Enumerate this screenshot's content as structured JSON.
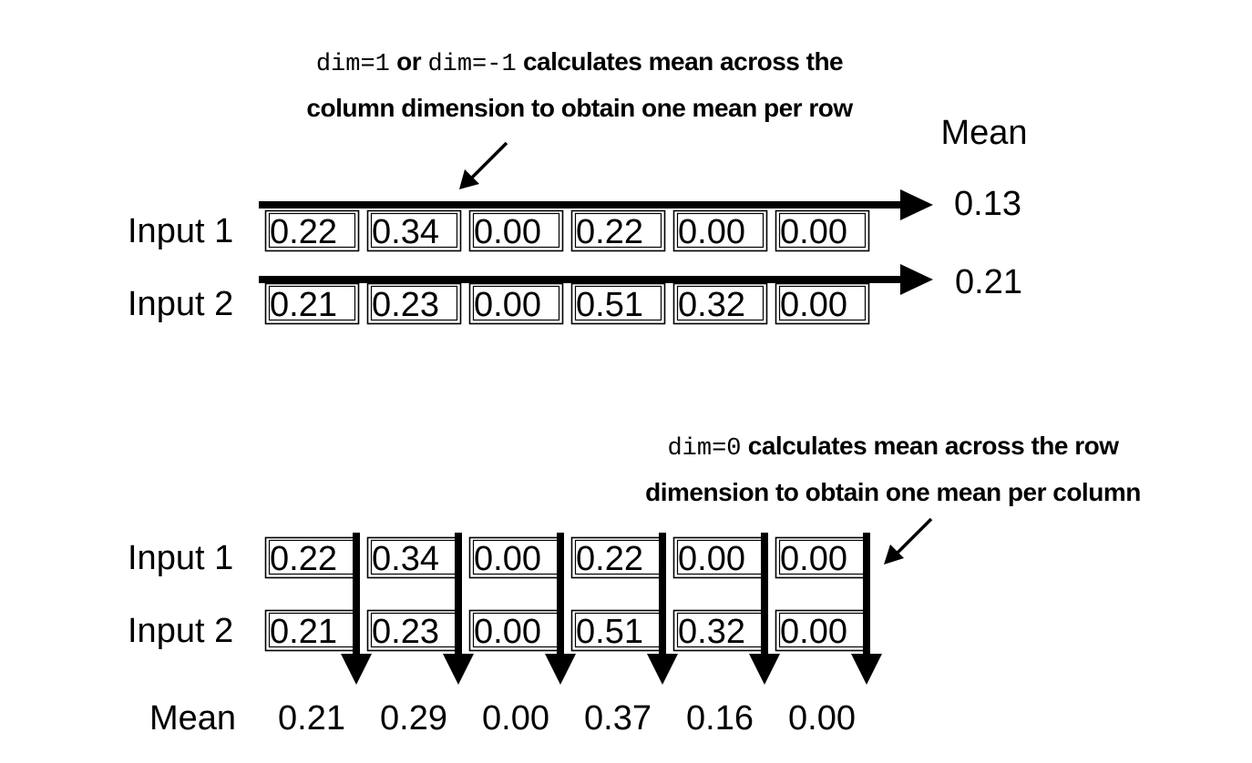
{
  "top_annotation": {
    "code_a": "dim=1",
    "word_or": "or",
    "code_b": "dim=-1",
    "line1_rest": "calculates mean across the",
    "line2": "column dimension to obtain one mean per row"
  },
  "bottom_annotation": {
    "code": "dim=0",
    "line1_rest": "calculates mean across the row",
    "line2": "dimension to obtain one mean per column"
  },
  "mean_label": "Mean",
  "row_labels": [
    "Input 1",
    "Input 2"
  ],
  "tensor": [
    [
      "0.22",
      "0.34",
      "0.00",
      "0.22",
      "0.00",
      "0.00"
    ],
    [
      "0.21",
      "0.23",
      "0.00",
      "0.51",
      "0.32",
      "0.00"
    ]
  ],
  "row_means": [
    "0.13",
    "0.21"
  ],
  "column_means": [
    "0.21",
    "0.29",
    "0.00",
    "0.37",
    "0.16",
    "0.00"
  ]
}
